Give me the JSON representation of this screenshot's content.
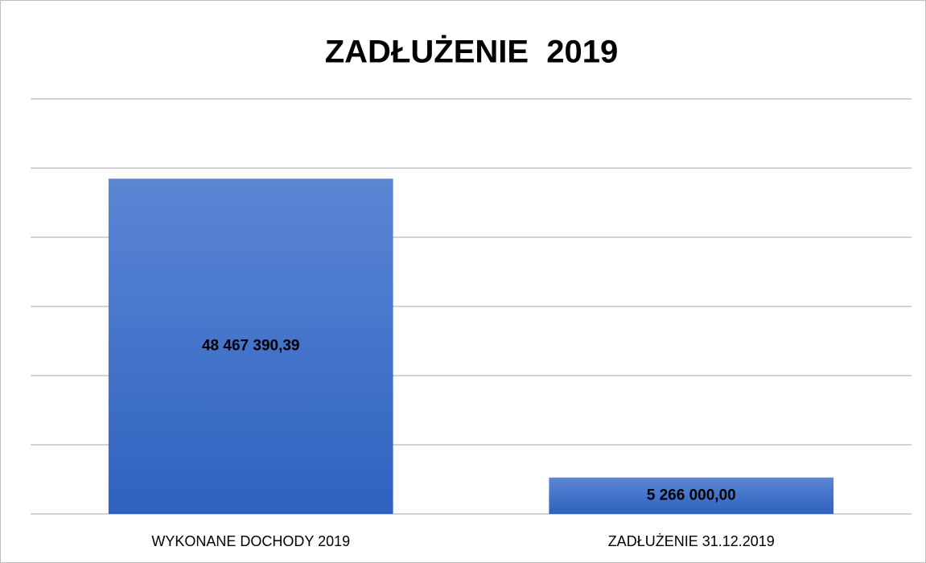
{
  "chart_data": {
    "type": "bar",
    "title": "ZADŁUŻENIE  2019",
    "categories": [
      "WYKONANE DOCHODY 2019",
      "ZADŁUŻENIE 31.12.2019"
    ],
    "values": [
      48467390.39,
      5266000
    ],
    "value_labels": [
      "48 467 390,39",
      "5 266 000,00"
    ],
    "color": "#4472c4",
    "ylim": [
      0,
      60000000
    ],
    "yticks": [
      0,
      10000000,
      20000000,
      30000000,
      40000000,
      50000000,
      60000000
    ],
    "grid": true
  }
}
